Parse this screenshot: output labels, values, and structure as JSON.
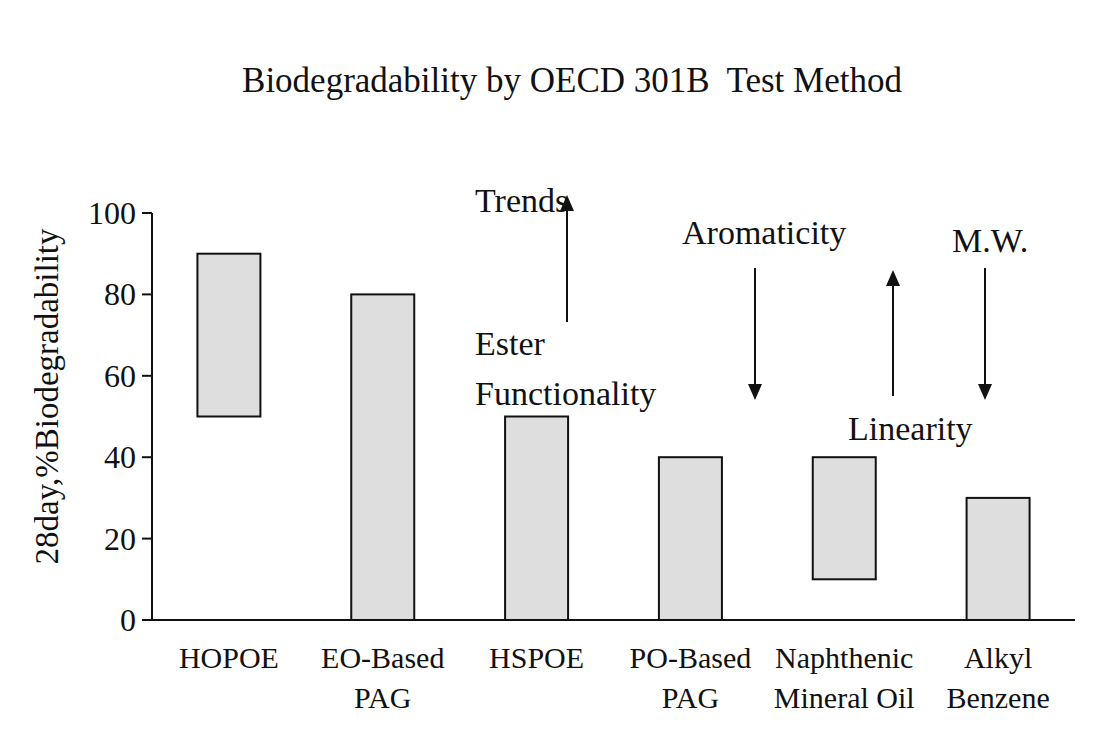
{
  "chart_data": {
    "type": "range_bar",
    "title": "Biodegradability by OECD 301B  Test Method",
    "y_label": "28day,%Biodegradability",
    "categories": [
      "HOPOE",
      "EO-Based PAG",
      "HSPOE",
      "PO-Based PAG",
      "Naphthenic Mineral Oil",
      "Alkyl Benzene"
    ],
    "low": [
      50,
      0,
      0,
      0,
      10,
      0
    ],
    "high": [
      90,
      80,
      50,
      40,
      40,
      30
    ],
    "color": "#dedede",
    "ylim": [
      0,
      100
    ],
    "yticks": [
      0,
      20,
      40,
      60,
      80,
      100
    ],
    "grid": false,
    "annotations": [
      "Trends",
      "Ester Functionality",
      "Aromaticity",
      "Linearity",
      "M.W."
    ]
  }
}
